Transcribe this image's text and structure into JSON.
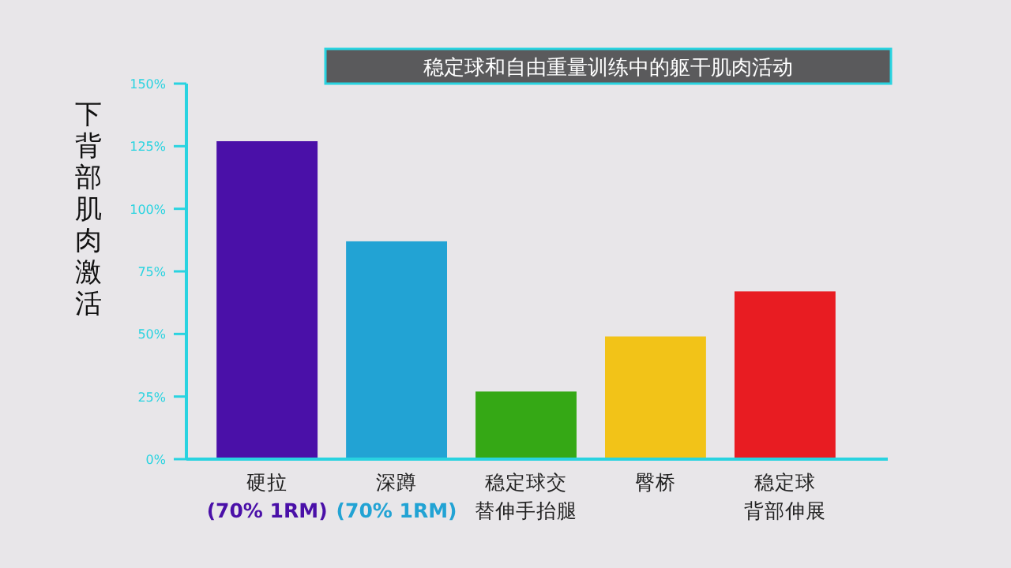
{
  "chart_data": {
    "type": "bar",
    "title": "稳定球和自由重量训练中的躯干肌肉活动",
    "ylabel": "下背部肌肉激活",
    "categories": [
      "硬拉\n(70% 1RM)",
      "深蹲\n(70% 1RM)",
      "稳定球交替伸手抬腿",
      "臀桥",
      "稳定球背部伸展"
    ],
    "values": [
      127,
      87,
      27,
      49,
      67
    ],
    "colors": [
      "#4a10a8",
      "#22a3d4",
      "#35a815",
      "#f2c318",
      "#e81c22"
    ],
    "ylim": [
      0,
      150
    ],
    "yticks": [
      {
        "value": 0,
        "label": "0%"
      },
      {
        "value": 25,
        "label": "25%"
      },
      {
        "value": 50,
        "label": "50%"
      },
      {
        "value": 75,
        "label": "75%"
      },
      {
        "value": 100,
        "label": "100%"
      },
      {
        "value": 125,
        "label": "125%"
      },
      {
        "value": 150,
        "label": "150%"
      }
    ],
    "grid": false
  }
}
